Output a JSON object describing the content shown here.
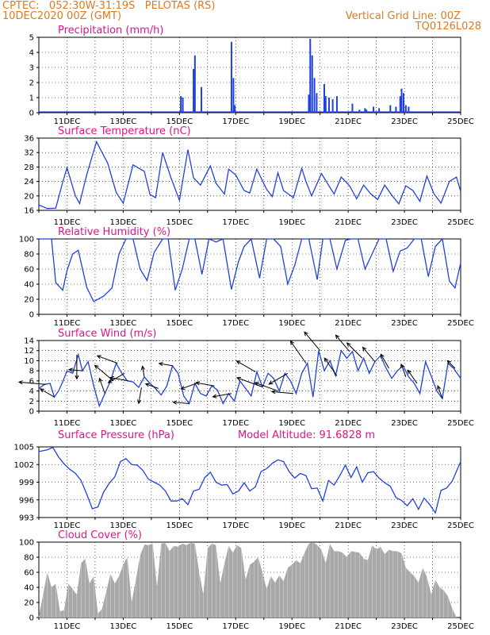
{
  "header": {
    "line1": "CPTEC:   052:30W-31:19S   PELOTAS (RS)",
    "line2": "10DEC2020 00Z (GMT)",
    "right1": "Vertical Grid Line: 00Z",
    "right2": "TQ0126L028"
  },
  "x_labels": [
    "11DEC",
    "13DEC",
    "15DEC",
    "17DEC",
    "19DEC",
    "21DEC",
    "23DEC",
    "25DEC"
  ],
  "colors": {
    "line": "#2040e0",
    "title": "#e0148a",
    "header": "#e07a1f",
    "cloud": "#a8a8a8",
    "arrow": "#000000"
  },
  "chart_data": [
    {
      "type": "bar",
      "title": "Precipitation (mm/h)",
      "ylim": [
        0,
        5
      ],
      "yticks": [
        0,
        1,
        2,
        3,
        4,
        5
      ],
      "x_unit": "days since 10DEC2020 00Z",
      "spikes": [
        {
          "x": 5.05,
          "value": 1.1
        },
        {
          "x": 5.12,
          "value": 1.0
        },
        {
          "x": 5.5,
          "value": 2.9
        },
        {
          "x": 5.55,
          "value": 3.8
        },
        {
          "x": 5.78,
          "value": 1.7
        },
        {
          "x": 6.85,
          "value": 4.7
        },
        {
          "x": 6.92,
          "value": 2.3
        },
        {
          "x": 6.97,
          "value": 0.5
        },
        {
          "x": 9.6,
          "value": 1.2
        },
        {
          "x": 9.65,
          "value": 4.9
        },
        {
          "x": 9.72,
          "value": 3.8
        },
        {
          "x": 9.8,
          "value": 2.3
        },
        {
          "x": 9.88,
          "value": 1.3
        },
        {
          "x": 10.15,
          "value": 1.9
        },
        {
          "x": 10.2,
          "value": 1.1
        },
        {
          "x": 10.32,
          "value": 1.0
        },
        {
          "x": 10.45,
          "value": 0.9
        },
        {
          "x": 10.6,
          "value": 1.1
        },
        {
          "x": 11.15,
          "value": 0.6
        },
        {
          "x": 11.4,
          "value": 0.2
        },
        {
          "x": 11.6,
          "value": 0.3
        },
        {
          "x": 11.65,
          "value": 0.2
        },
        {
          "x": 11.9,
          "value": 0.4
        },
        {
          "x": 12.1,
          "value": 0.3
        },
        {
          "x": 12.5,
          "value": 0.5
        },
        {
          "x": 12.7,
          "value": 0.4
        },
        {
          "x": 12.85,
          "value": 1.1
        },
        {
          "x": 12.9,
          "value": 1.6
        },
        {
          "x": 12.97,
          "value": 1.3
        },
        {
          "x": 13.05,
          "value": 0.5
        },
        {
          "x": 13.15,
          "value": 0.4
        }
      ]
    },
    {
      "type": "line",
      "title": "Surface Temperature (nC)",
      "ylim": [
        16,
        36
      ],
      "yticks": [
        16,
        20,
        24,
        28,
        32,
        36
      ],
      "x": [
        0,
        0.3,
        0.6,
        0.85,
        1.0,
        1.3,
        1.45,
        1.7,
        2.05,
        2.45,
        2.75,
        3.0,
        3.35,
        3.75,
        3.95,
        4.15,
        4.4,
        4.7,
        5.0,
        5.3,
        5.5,
        5.75,
        6.1,
        6.3,
        6.6,
        6.75,
        7.0,
        7.3,
        7.5,
        7.75,
        8.1,
        8.3,
        8.5,
        8.7,
        9.05,
        9.35,
        9.5,
        9.7,
        10.05,
        10.3,
        10.5,
        10.75,
        11.05,
        11.3,
        11.55,
        11.8,
        12.05,
        12.3,
        12.55,
        12.8,
        13.05,
        13.3,
        13.55,
        13.8,
        14.05,
        14.3,
        14.6,
        14.85,
        15.0
      ],
      "y": [
        17.5,
        16.5,
        16.6,
        23.8,
        27.8,
        20.0,
        17.9,
        25.8,
        35.0,
        29.0,
        21.0,
        18.0,
        28.6,
        26.8,
        20.4,
        19.5,
        32.0,
        25.0,
        18.8,
        32.8,
        25.0,
        23.0,
        28.3,
        23.5,
        20.5,
        27.4,
        25.8,
        21.5,
        20.8,
        27.4,
        21.8,
        19.8,
        26.4,
        21.5,
        19.5,
        27.6,
        24.0,
        20.0,
        26.2,
        23.0,
        20.5,
        25.2,
        22.8,
        19.2,
        23.0,
        20.6,
        19.0,
        23.0,
        20.2,
        17.8,
        22.8,
        21.5,
        18.5,
        25.5,
        20.6,
        18.0,
        24.0,
        25.2,
        21.2
      ]
    },
    {
      "type": "line",
      "title": "Relative Humidity (%)",
      "ylim": [
        0,
        100
      ],
      "yticks": [
        0,
        20,
        40,
        60,
        80,
        100
      ],
      "x": [
        0,
        0.25,
        0.45,
        0.6,
        0.85,
        1.0,
        1.2,
        1.4,
        1.7,
        1.95,
        2.3,
        2.6,
        2.85,
        3.1,
        3.35,
        3.6,
        3.85,
        4.1,
        4.4,
        4.6,
        4.85,
        5.1,
        5.35,
        5.55,
        5.8,
        6.05,
        6.3,
        6.55,
        6.85,
        7.1,
        7.3,
        7.55,
        7.85,
        8.1,
        8.35,
        8.6,
        8.85,
        9.1,
        9.35,
        9.6,
        9.9,
        10.1,
        10.35,
        10.6,
        10.9,
        11.1,
        11.35,
        11.6,
        11.85,
        12.1,
        12.35,
        12.6,
        12.85,
        13.1,
        13.35,
        13.6,
        13.85,
        14.1,
        14.35,
        14.6,
        14.8,
        15.0
      ],
      "y": [
        100,
        100,
        100,
        42,
        32,
        58,
        80,
        85,
        36,
        17,
        24,
        35,
        80,
        100,
        100,
        60,
        45,
        82,
        100,
        100,
        32,
        60,
        100,
        100,
        53,
        100,
        96,
        100,
        33,
        70,
        90,
        100,
        48,
        100,
        100,
        90,
        40,
        65,
        100,
        100,
        46,
        100,
        100,
        60,
        98,
        100,
        100,
        60,
        80,
        100,
        100,
        57,
        84,
        88,
        100,
        100,
        50,
        90,
        100,
        44,
        35,
        68
      ]
    },
    {
      "type": "line",
      "title": "Surface Wind (m/s)",
      "ylim": [
        0,
        14
      ],
      "yticks": [
        0,
        2,
        4,
        6,
        8,
        10,
        12,
        14
      ],
      "x": [
        0,
        0.2,
        0.4,
        0.55,
        0.7,
        0.85,
        1.0,
        1.2,
        1.4,
        1.55,
        1.75,
        1.95,
        2.15,
        2.35,
        2.55,
        2.75,
        2.95,
        3.15,
        3.35,
        3.55,
        3.75,
        3.95,
        4.15,
        4.35,
        4.55,
        4.75,
        4.95,
        5.15,
        5.35,
        5.55,
        5.75,
        5.95,
        6.15,
        6.35,
        6.55,
        6.75,
        6.95,
        7.15,
        7.35,
        7.55,
        7.75,
        7.95,
        8.15,
        8.35,
        8.55,
        8.75,
        8.95,
        9.15,
        9.35,
        9.55,
        9.75,
        9.95,
        10.15,
        10.35,
        10.55,
        10.75,
        10.95,
        11.15,
        11.35,
        11.55,
        11.75,
        11.95,
        12.15,
        12.35,
        12.55,
        12.75,
        12.95,
        13.15,
        13.35,
        13.55,
        13.75,
        13.95,
        14.15,
        14.35,
        14.55,
        14.75,
        15.0
      ],
      "y": [
        4.5,
        5.3,
        5.5,
        2.8,
        4.0,
        5.8,
        8.0,
        7.5,
        11.2,
        8.0,
        9.8,
        5.0,
        1.0,
        3.5,
        6.0,
        9.5,
        7.5,
        6.0,
        5.8,
        4.7,
        6.8,
        5.5,
        4.5,
        3.2,
        5.0,
        9.0,
        7.5,
        3.0,
        1.5,
        5.5,
        3.5,
        3.0,
        5.0,
        4.2,
        1.5,
        3.5,
        2.0,
        6.0,
        4.5,
        3.0,
        7.8,
        4.8,
        7.5,
        6.5,
        4.0,
        7.5,
        6.0,
        3.5,
        7.5,
        9.5,
        2.8,
        12.0,
        8.0,
        10.0,
        7.0,
        12.0,
        10.5,
        11.8,
        8.0,
        10.5,
        7.5,
        9.8,
        11.0,
        8.5,
        6.5,
        8.0,
        9.0,
        6.8,
        5.5,
        3.5,
        9.8,
        7.0,
        4.0,
        2.5,
        9.5,
        8.5,
        6.5
      ]
    },
    {
      "type": "line",
      "title": "Surface Pressure (hPa)",
      "annotation": "Model Altitude: 91.6828 m",
      "ylim": [
        993,
        1005
      ],
      "yticks": [
        993,
        996,
        999,
        1002,
        1005
      ],
      "ytick_labels": [
        "993",
        "996",
        "999",
        "1002",
        "1005"
      ],
      "x": [
        0,
        0.3,
        0.5,
        0.7,
        0.9,
        1.1,
        1.3,
        1.5,
        1.7,
        1.9,
        2.1,
        2.3,
        2.5,
        2.7,
        2.9,
        3.1,
        3.3,
        3.5,
        3.7,
        3.9,
        4.1,
        4.3,
        4.5,
        4.7,
        4.9,
        5.1,
        5.3,
        5.5,
        5.7,
        5.9,
        6.1,
        6.3,
        6.5,
        6.7,
        6.9,
        7.1,
        7.3,
        7.5,
        7.7,
        7.9,
        8.1,
        8.3,
        8.5,
        8.7,
        8.9,
        9.1,
        9.3,
        9.5,
        9.7,
        9.9,
        10.1,
        10.3,
        10.5,
        10.7,
        10.9,
        11.1,
        11.3,
        11.5,
        11.7,
        11.9,
        12.1,
        12.3,
        12.5,
        12.7,
        12.9,
        13.1,
        13.3,
        13.5,
        13.7,
        13.9,
        14.1,
        14.3,
        14.5,
        14.7,
        15.0
      ],
      "y": [
        1004.2,
        1004.5,
        1004.9,
        1003.3,
        1002.1,
        1001.2,
        1000.5,
        999.3,
        997.0,
        994.5,
        994.8,
        997.3,
        998.8,
        999.9,
        1002.5,
        1003.0,
        1002.0,
        1001.9,
        1001.0,
        999.5,
        999.0,
        998.5,
        997.5,
        995.8,
        995.8,
        996.2,
        995.2,
        997.5,
        997.8,
        999.8,
        1000.7,
        999.0,
        998.5,
        998.6,
        997.0,
        997.5,
        998.9,
        997.5,
        998.2,
        1000.8,
        1001.3,
        1002.2,
        1002.8,
        1002.5,
        1000.8,
        999.7,
        1000.5,
        1000.1,
        997.9,
        998.0,
        995.8,
        999.3,
        998.5,
        1000.1,
        1001.9,
        999.8,
        1001.6,
        999.0,
        1000.6,
        1000.8,
        999.7,
        998.9,
        998.3,
        996.4,
        995.9,
        995.0,
        996.2,
        994.4,
        996.3,
        995.2,
        993.8,
        997.6,
        998.0,
        999.2,
        1002.5
      ]
    },
    {
      "type": "area",
      "title": "Cloud Cover (%)",
      "ylim": [
        0,
        100
      ],
      "yticks": [
        0,
        20,
        40,
        60,
        80,
        100
      ],
      "x": [
        0,
        0.15,
        0.3,
        0.45,
        0.6,
        0.75,
        0.9,
        1.05,
        1.2,
        1.35,
        1.5,
        1.65,
        1.8,
        1.95,
        2.1,
        2.25,
        2.4,
        2.55,
        2.7,
        2.85,
        3.0,
        3.15,
        3.3,
        3.45,
        3.6,
        3.75,
        3.9,
        4.05,
        4.2,
        4.35,
        4.5,
        4.65,
        4.8,
        4.95,
        5.1,
        5.25,
        5.4,
        5.55,
        5.7,
        5.85,
        6.0,
        6.15,
        6.3,
        6.45,
        6.6,
        6.75,
        6.9,
        7.05,
        7.2,
        7.35,
        7.5,
        7.65,
        7.8,
        7.95,
        8.1,
        8.25,
        8.4,
        8.55,
        8.7,
        8.85,
        9.0,
        9.15,
        9.3,
        9.45,
        9.6,
        9.75,
        9.9,
        10.05,
        10.2,
        10.35,
        10.5,
        10.65,
        10.8,
        10.95,
        11.1,
        11.25,
        11.4,
        11.55,
        11.7,
        11.85,
        12.0,
        12.15,
        12.3,
        12.45,
        12.6,
        12.75,
        12.9,
        13.05,
        13.2,
        13.35,
        13.5,
        13.65,
        13.8,
        13.95,
        14.1,
        14.25,
        14.4,
        14.55,
        14.7,
        14.85,
        15.0
      ],
      "y": [
        2,
        30,
        60,
        40,
        45,
        8,
        10,
        45,
        38,
        30,
        72,
        78,
        45,
        55,
        5,
        12,
        35,
        58,
        45,
        55,
        70,
        80,
        20,
        50,
        82,
        97,
        96,
        98,
        40,
        98,
        99,
        88,
        95,
        94,
        98,
        96,
        99,
        98,
        60,
        30,
        92,
        98,
        96,
        45,
        72,
        95,
        86,
        96,
        92,
        50,
        70,
        74,
        80,
        60,
        38,
        55,
        46,
        56,
        48,
        66,
        70,
        76,
        72,
        86,
        98,
        100,
        96,
        90,
        72,
        98,
        88,
        88,
        86,
        80,
        88,
        87,
        86,
        78,
        76,
        96,
        90,
        94,
        84,
        90,
        88,
        88,
        85,
        66,
        60,
        55,
        46,
        66,
        54,
        30,
        50,
        40,
        36,
        28,
        12,
        0,
        0
      ]
    }
  ],
  "wind_vectors": {
    "description_unit": "degrees (math angle, 0 = east, 90 = up) and relative length",
    "items": [
      {
        "x": 0.25,
        "angle": 175,
        "len": 1.0
      },
      {
        "x": 0.55,
        "angle": 150,
        "len": 0.6
      },
      {
        "x": 1.35,
        "angle": -90,
        "len": 0.9
      },
      {
        "x": 1.55,
        "angle": 175,
        "len": 0.5
      },
      {
        "x": 2.35,
        "angle": 110,
        "len": 0.6
      },
      {
        "x": 2.65,
        "angle": 140,
        "len": 0.9
      },
      {
        "x": 2.8,
        "angle": 160,
        "len": 0.8
      },
      {
        "x": 3.05,
        "angle": -150,
        "len": 0.7
      },
      {
        "x": 3.2,
        "angle": 170,
        "len": 0.7
      },
      {
        "x": 3.65,
        "angle": -100,
        "len": 0.6
      },
      {
        "x": 3.75,
        "angle": 100,
        "len": 0.4
      },
      {
        "x": 4.25,
        "angle": 160,
        "len": 0.5
      },
      {
        "x": 4.75,
        "angle": 170,
        "len": 0.5
      },
      {
        "x": 5.35,
        "angle": 175,
        "len": 0.6
      },
      {
        "x": 5.6,
        "angle": -160,
        "len": 0.6
      },
      {
        "x": 6.25,
        "angle": 170,
        "len": 0.7
      },
      {
        "x": 6.85,
        "angle": -170,
        "len": 0.7
      },
      {
        "x": 7.7,
        "angle": 150,
        "len": 0.8
      },
      {
        "x": 7.95,
        "angle": 160,
        "len": 1.0
      },
      {
        "x": 8.5,
        "angle": 160,
        "len": 0.9
      },
      {
        "x": 8.85,
        "angle": -150,
        "len": 0.8
      },
      {
        "x": 9.05,
        "angle": 175,
        "len": 0.8
      },
      {
        "x": 9.5,
        "angle": 125,
        "len": 1.0
      },
      {
        "x": 10.0,
        "angle": 130,
        "len": 0.9
      },
      {
        "x": 10.6,
        "angle": 125,
        "len": 0.8
      },
      {
        "x": 11.05,
        "angle": 130,
        "len": 0.8
      },
      {
        "x": 11.5,
        "angle": 135,
        "len": 0.8
      },
      {
        "x": 11.95,
        "angle": 130,
        "len": 0.7
      },
      {
        "x": 12.45,
        "angle": 120,
        "len": 0.6
      },
      {
        "x": 13.05,
        "angle": 110,
        "len": 0.5
      },
      {
        "x": 13.45,
        "angle": 125,
        "len": 0.6
      },
      {
        "x": 14.35,
        "angle": 110,
        "len": 0.5
      },
      {
        "x": 14.8,
        "angle": 135,
        "len": 0.4
      }
    ]
  }
}
